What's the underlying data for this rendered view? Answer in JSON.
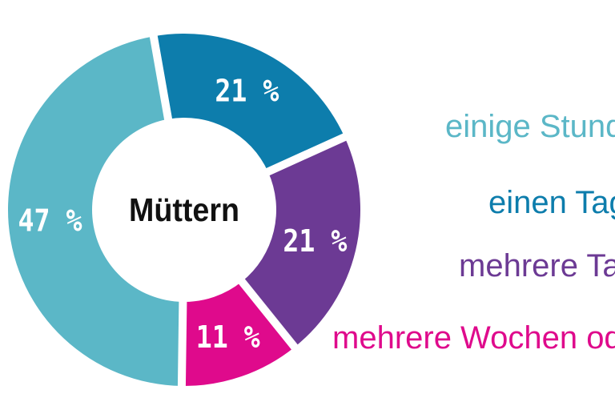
{
  "chart_data": {
    "type": "donut",
    "center_label": "Müttern",
    "start_angle_deg": -10,
    "legend_position": "right",
    "slices": [
      {
        "label": "einen Tag",
        "value": 21,
        "display": "21 %",
        "color": "#0d7dac"
      },
      {
        "label": "mehrere Tage",
        "value": 21,
        "display": "21 %",
        "color": "#6c3a94"
      },
      {
        "label": "mehrere Wochen oder",
        "value": 11,
        "display": "11 %",
        "color": "#df0a8c"
      },
      {
        "label": "einige Stunden",
        "value": 47,
        "display": "47 %",
        "color": "#5bb7c7"
      }
    ]
  },
  "legend": {
    "items": [
      {
        "label": "einige Stunden",
        "color": "#5bb7c7"
      },
      {
        "label": "einen Tag",
        "color": "#0d7dac"
      },
      {
        "label": "mehrere Tage",
        "color": "#6c3a94"
      },
      {
        "label": "mehrere Wochen oder",
        "color": "#df0a8c"
      }
    ]
  },
  "colors": {
    "background": "#ffffff",
    "separator": "#ffffff",
    "slice_label_text": "#ffffff",
    "center_label_text": "#111111"
  }
}
